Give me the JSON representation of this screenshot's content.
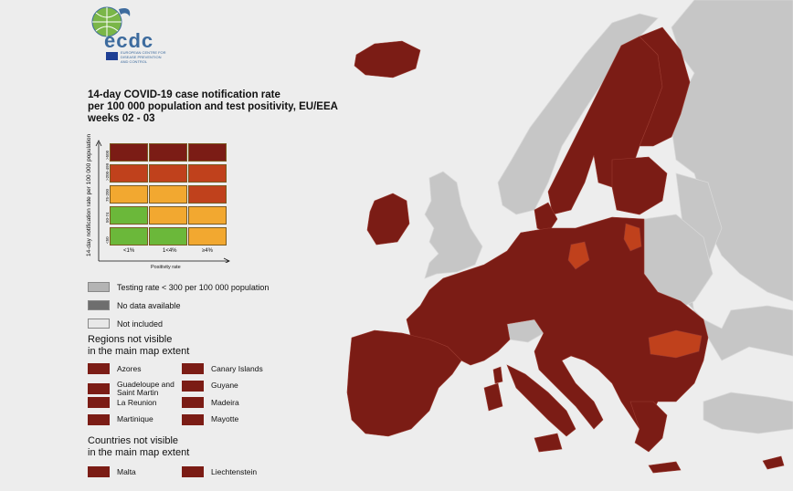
{
  "logo": {
    "text": "ecdc",
    "subtitle": "EUROPEAN CENTRE FOR DISEASE PREVENTION AND CONTROL"
  },
  "title": {
    "line1": "14-day COVID-19 case notification rate",
    "line2": "per 100 000 population and test positivity, EU/EEA",
    "line3": "weeks 02 - 03"
  },
  "matrix": {
    "y_axis_label": "14-day notification rate per 100 000 population",
    "x_axis_label": "Positivity rate",
    "rows": [
      ">500",
      ">200-499",
      "75-200",
      "50-74",
      "<50"
    ],
    "columns": [
      "<1%",
      "1<4%",
      "≥4%"
    ],
    "cells": [
      [
        "#7b1c15",
        "#7b1c15",
        "#7b1c15"
      ],
      [
        "#c0411c",
        "#c0411c",
        "#c0411c"
      ],
      [
        "#f2a830",
        "#f2a830",
        "#c0411c"
      ],
      [
        "#6bb83a",
        "#f2a830",
        "#f2a830"
      ],
      [
        "#6bb83a",
        "#6bb83a",
        "#f2a830"
      ]
    ]
  },
  "legend": [
    {
      "label": "Testing rate < 300 per 100 000 population",
      "color": "#b4b4b4"
    },
    {
      "label": "No data available",
      "color": "#6e6e6e"
    },
    {
      "label": "Not included",
      "color": "#e8e8e8"
    }
  ],
  "regions_section": {
    "title_line1": "Regions not visible",
    "title_line2": "in the main map extent",
    "items": [
      "Azores",
      "Canary Islands",
      "Guadeloupe and Saint Martin",
      "Guyane",
      "La Reunion",
      "Madeira",
      "Martinique",
      "Mayotte"
    ]
  },
  "countries_section": {
    "title_line1": "Countries not visible",
    "title_line2": "in the main map extent",
    "items": [
      "Malta",
      "Liechtenstein"
    ]
  },
  "colors": {
    "dark_red": "#7b1c15",
    "red": "#c0411c",
    "orange": "#f2a830",
    "green": "#6bb83a",
    "non_eu": "#c8c8c8",
    "sea": "#ededed"
  }
}
